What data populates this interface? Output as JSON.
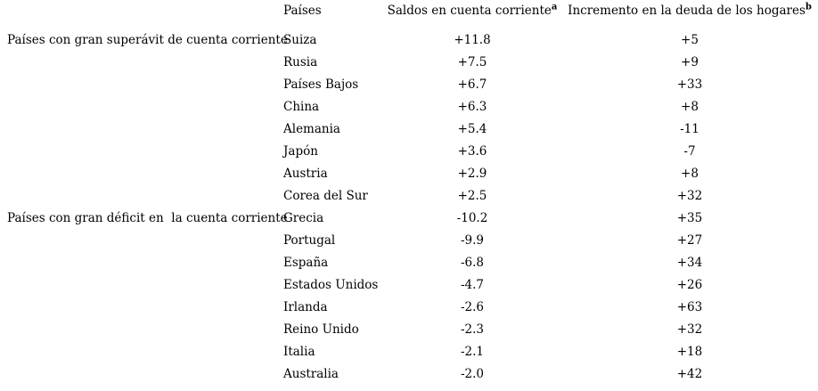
{
  "table": {
    "headers": {
      "country": "Países",
      "balance": "Saldos en cuenta corriente",
      "balance_note": "a",
      "debt": "Incremento en la deuda de los hogares",
      "debt_note": "b"
    },
    "groups": [
      {
        "label": "Países con gran superávit de cuenta corriente",
        "rows": [
          {
            "country": "Suiza",
            "balance": "+11.8",
            "debt": "+5"
          },
          {
            "country": "Rusia",
            "balance": "+7.5",
            "debt": "+9"
          },
          {
            "country": "Países Bajos",
            "balance": "+6.7",
            "debt": "+33"
          },
          {
            "country": "China",
            "balance": "+6.3",
            "debt": "+8"
          },
          {
            "country": "Alemania",
            "balance": "+5.4",
            "debt": "-11"
          },
          {
            "country": "Japón",
            "balance": "+3.6",
            "debt": "-7"
          },
          {
            "country": "Austria",
            "balance": "+2.9",
            "debt": "+8"
          },
          {
            "country": "Corea del Sur",
            "balance": "+2.5",
            "debt": "+32"
          }
        ]
      },
      {
        "label": "Países con gran déficit en  la cuenta corriente",
        "rows": [
          {
            "country": "Grecia",
            "balance": "-10.2",
            "debt": "+35"
          },
          {
            "country": "Portugal",
            "balance": "-9.9",
            "debt": "+27"
          },
          {
            "country": "España",
            "balance": "-6.8",
            "debt": "+34"
          },
          {
            "country": "Estados Unidos",
            "balance": "-4.7",
            "debt": "+26"
          },
          {
            "country": "Irlanda",
            "balance": "-2.6",
            "debt": "+63"
          },
          {
            "country": "Reino Unido",
            "balance": "-2.3",
            "debt": "+32"
          },
          {
            "country": "Italia",
            "balance": "-2.1",
            "debt": "+18"
          },
          {
            "country": "Australia",
            "balance": "-2.0",
            "debt": "+42"
          }
        ]
      }
    ]
  }
}
